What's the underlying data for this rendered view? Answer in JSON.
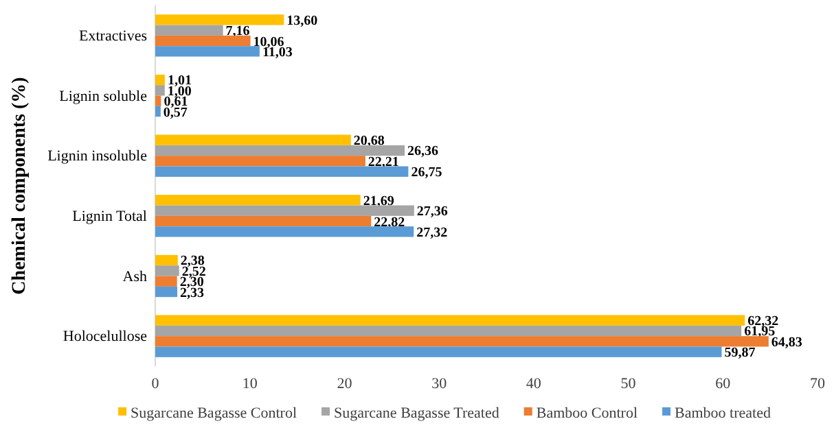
{
  "chart_data": {
    "type": "bar",
    "orientation": "horizontal",
    "ylabel": "Chemical components (%)",
    "categories": [
      "Extractives",
      "Lignin soluble",
      "Lignin insoluble",
      "Lignin Total",
      "Ash",
      "Holocelullose"
    ],
    "series": [
      {
        "name": "Sugarcane Bagasse Control",
        "color": "#ffc000",
        "values": [
          13.6,
          1.01,
          20.68,
          21.69,
          2.38,
          62.32
        ],
        "value_labels": [
          "13,60",
          "1,01",
          "20,68",
          "21,69",
          "2,38",
          "62,32"
        ]
      },
      {
        "name": "Sugarcane Bagasse Treated",
        "color": "#a5a5a5",
        "values": [
          7.16,
          1.0,
          26.36,
          27.36,
          2.52,
          61.95
        ],
        "value_labels": [
          "7,16",
          "1,00",
          "26,36",
          "27,36",
          "2,52",
          "61,95"
        ]
      },
      {
        "name": "Bamboo Control",
        "color": "#ed7d31",
        "values": [
          10.06,
          0.61,
          22.21,
          22.82,
          2.3,
          64.83
        ],
        "value_labels": [
          "10,06",
          "0,61",
          "22,21",
          "22,82",
          "2,30",
          "64,83"
        ]
      },
      {
        "name": "Bamboo treated",
        "color": "#5b9bd5",
        "values": [
          11.03,
          0.57,
          26.75,
          27.32,
          2.33,
          59.87
        ],
        "value_labels": [
          "11,03",
          "0,57",
          "26,75",
          "27,32",
          "2,33",
          "59,87"
        ]
      }
    ],
    "xlim": [
      0,
      70
    ],
    "xticks": [
      0,
      10,
      20,
      30,
      40,
      50,
      60,
      70
    ],
    "grid": false,
    "legend": "bottom"
  }
}
